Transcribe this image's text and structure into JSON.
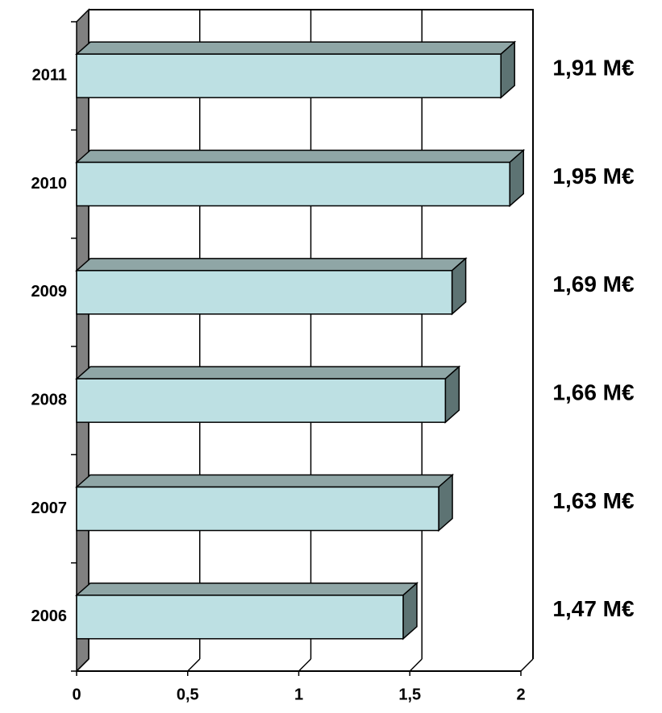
{
  "chart_data": {
    "type": "bar",
    "orientation": "horizontal",
    "categories": [
      "2006",
      "2007",
      "2008",
      "2009",
      "2010",
      "2011"
    ],
    "values": [
      1.47,
      1.63,
      1.66,
      1.69,
      1.95,
      1.91
    ],
    "value_labels": [
      "1,47 M€",
      "1,63 M€",
      "1,66 M€",
      "1,69 M€",
      "1,95 M€",
      "1,91 M€"
    ],
    "color": "#bde0e3",
    "xlim": [
      0,
      2
    ],
    "xticks": [
      0,
      {
        "value": 0.5,
        "label": "0,5"
      },
      1,
      {
        "value": 1.5,
        "label": "1,5"
      },
      2
    ],
    "grid": true
  }
}
